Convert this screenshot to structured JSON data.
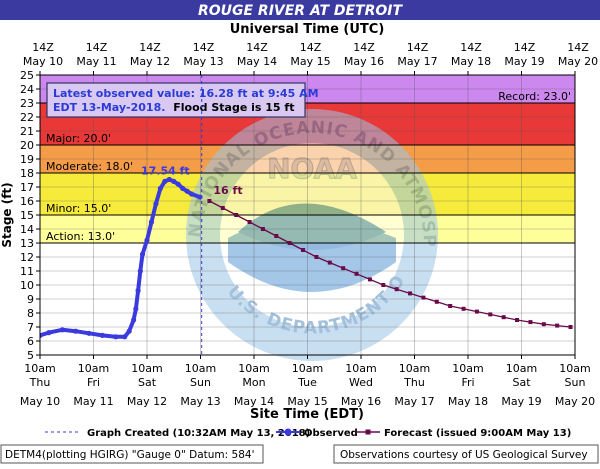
{
  "header": {
    "title": "ROUGE RIVER AT DETROIT",
    "utc_label": "Universal Time (UTC)"
  },
  "info_box": {
    "line1": "Latest observed value: 16.28 ft at 9:45 AM",
    "line2_blue": "EDT 13-May-2018.",
    "line2_black": "Flood Stage is 15 ft"
  },
  "watermark": {
    "ring_text": "NATIONAL OCEANIC AND ATMOSPHERIC ADMINISTRATION",
    "bottom_text": "U.S. DEPARTMENT OF COMMERCE",
    "logo_text": "NOAA"
  },
  "footer": {
    "legend_created": "Graph Created (10:32AM May 13, 2018)",
    "legend_observed": "Observed",
    "legend_forecast": "Forecast (issued 9:00AM May 13)",
    "datum": "DETM4(plotting HGIRG) \"Gauge 0\" Datum:  584'",
    "credit": "Observations courtesy of US Geological Survey"
  },
  "colors": {
    "title_bar": "#3a3aa0",
    "observed": "#3a3adf",
    "forecast": "#6a0a4a",
    "record_band": "#cc88ee",
    "major_band": "#e83838",
    "moderate_band": "#f59c48",
    "minor_band": "#f6ea3a",
    "action_band": "#ffff99",
    "normal_band": "#ffffff"
  },
  "chart_data": {
    "type": "line",
    "xlabel": "Site Time (EDT)",
    "ylabel": "Stage (ft)",
    "ylim": [
      5,
      25
    ],
    "x_range": [
      "2018-05-10 10:00",
      "2018-05-20 10:00"
    ],
    "grid": true,
    "x_ticks_local": [
      {
        "time": "10am",
        "day": "Thu",
        "date": "May 10"
      },
      {
        "time": "10am",
        "day": "Fri",
        "date": "May 11"
      },
      {
        "time": "10am",
        "day": "Sat",
        "date": "May 12"
      },
      {
        "time": "10am",
        "day": "Sun",
        "date": "May 13"
      },
      {
        "time": "10am",
        "day": "Mon",
        "date": "May 14"
      },
      {
        "time": "10am",
        "day": "Tue",
        "date": "May 15"
      },
      {
        "time": "10am",
        "day": "Wed",
        "date": "May 16"
      },
      {
        "time": "10am",
        "day": "Thu",
        "date": "May 17"
      },
      {
        "time": "10am",
        "day": "Fri",
        "date": "May 18"
      },
      {
        "time": "10am",
        "day": "Sat",
        "date": "May 19"
      },
      {
        "time": "10am",
        "day": "Sun",
        "date": "May 20"
      }
    ],
    "x_ticks_utc": [
      {
        "time": "14Z",
        "date": "May 10"
      },
      {
        "time": "14Z",
        "date": "May 11"
      },
      {
        "time": "14Z",
        "date": "May 12"
      },
      {
        "time": "14Z",
        "date": "May 13"
      },
      {
        "time": "14Z",
        "date": "May 14"
      },
      {
        "time": "14Z",
        "date": "May 15"
      },
      {
        "time": "14Z",
        "date": "May 16"
      },
      {
        "time": "14Z",
        "date": "May 17"
      },
      {
        "time": "14Z",
        "date": "May 18"
      },
      {
        "time": "14Z",
        "date": "May 19"
      },
      {
        "time": "14Z",
        "date": "May 20"
      }
    ],
    "y_ticks": [
      5,
      6,
      7,
      8,
      9,
      10,
      11,
      12,
      13,
      14,
      15,
      16,
      17,
      18,
      19,
      20,
      21,
      22,
      23,
      24,
      25
    ],
    "flood_categories": [
      {
        "name": "Record",
        "label": "Record: 23.0'",
        "stage": 23.0,
        "top": 25,
        "color": "#cc88ee"
      },
      {
        "name": "Major",
        "label": "Major: 20.0'",
        "stage": 20.0,
        "top": 23,
        "color": "#e83838"
      },
      {
        "name": "Moderate",
        "label": "Moderate: 18.0'",
        "stage": 18.0,
        "top": 20,
        "color": "#f59c48"
      },
      {
        "name": "Minor",
        "label": "Minor: 15.0'",
        "stage": 15.0,
        "top": 18,
        "color": "#f6ea3a"
      },
      {
        "name": "Action",
        "label": "Action: 13.0'",
        "stage": 13.0,
        "top": 15,
        "color": "#ffff99"
      }
    ],
    "graph_created_time": "2018-05-13 10:32",
    "series": [
      {
        "name": "Observed",
        "points": [
          [
            "2018-05-10 10:00",
            6.4
          ],
          [
            "2018-05-10 14:00",
            6.6
          ],
          [
            "2018-05-10 20:00",
            6.8
          ],
          [
            "2018-05-11 02:00",
            6.7
          ],
          [
            "2018-05-11 08:00",
            6.55
          ],
          [
            "2018-05-11 14:00",
            6.4
          ],
          [
            "2018-05-11 20:00",
            6.3
          ],
          [
            "2018-05-12 00:00",
            6.3
          ],
          [
            "2018-05-12 02:00",
            6.7
          ],
          [
            "2018-05-12 04:00",
            7.5
          ],
          [
            "2018-05-12 05:00",
            8.3
          ],
          [
            "2018-05-12 06:00",
            9.6
          ],
          [
            "2018-05-12 07:00",
            11.0
          ],
          [
            "2018-05-12 08:00",
            12.2
          ],
          [
            "2018-05-12 10:00",
            13.2
          ],
          [
            "2018-05-12 12:00",
            14.5
          ],
          [
            "2018-05-12 14:00",
            15.8
          ],
          [
            "2018-05-12 16:00",
            16.9
          ],
          [
            "2018-05-12 18:00",
            17.4
          ],
          [
            "2018-05-12 20:00",
            17.54
          ],
          [
            "2018-05-12 22:00",
            17.4
          ],
          [
            "2018-05-13 00:00",
            17.2
          ],
          [
            "2018-05-13 02:00",
            16.9
          ],
          [
            "2018-05-13 04:00",
            16.7
          ],
          [
            "2018-05-13 06:00",
            16.5
          ],
          [
            "2018-05-13 09:45",
            16.28
          ]
        ],
        "annotation": {
          "label": "17.54 ft",
          "x": "2018-05-12 20:00",
          "y": 17.54
        }
      },
      {
        "name": "Forecast",
        "points": [
          [
            "2018-05-13 14:00",
            16.0
          ],
          [
            "2018-05-13 20:00",
            15.5
          ],
          [
            "2018-05-14 02:00",
            15.0
          ],
          [
            "2018-05-14 08:00",
            14.5
          ],
          [
            "2018-05-14 14:00",
            14.0
          ],
          [
            "2018-05-14 20:00",
            13.5
          ],
          [
            "2018-05-15 02:00",
            13.0
          ],
          [
            "2018-05-15 08:00",
            12.5
          ],
          [
            "2018-05-15 14:00",
            12.0
          ],
          [
            "2018-05-15 20:00",
            11.6
          ],
          [
            "2018-05-16 02:00",
            11.2
          ],
          [
            "2018-05-16 08:00",
            10.8
          ],
          [
            "2018-05-16 14:00",
            10.4
          ],
          [
            "2018-05-16 20:00",
            10.0
          ],
          [
            "2018-05-17 02:00",
            9.7
          ],
          [
            "2018-05-17 08:00",
            9.4
          ],
          [
            "2018-05-17 14:00",
            9.1
          ],
          [
            "2018-05-17 20:00",
            8.8
          ],
          [
            "2018-05-18 02:00",
            8.5
          ],
          [
            "2018-05-18 08:00",
            8.3
          ],
          [
            "2018-05-18 14:00",
            8.1
          ],
          [
            "2018-05-18 20:00",
            7.9
          ],
          [
            "2018-05-19 02:00",
            7.7
          ],
          [
            "2018-05-19 08:00",
            7.5
          ],
          [
            "2018-05-19 14:00",
            7.35
          ],
          [
            "2018-05-19 20:00",
            7.2
          ],
          [
            "2018-05-20 02:00",
            7.1
          ],
          [
            "2018-05-20 08:00",
            7.0
          ]
        ],
        "annotation": {
          "label": "16 ft",
          "x": "2018-05-13 14:00",
          "y": 16.0
        }
      }
    ]
  }
}
